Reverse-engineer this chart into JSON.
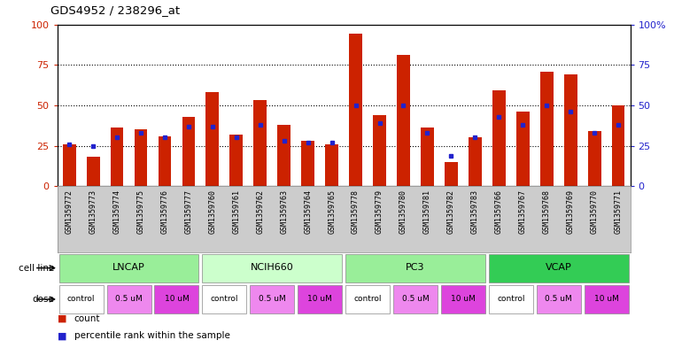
{
  "title": "GDS4952 / 238296_at",
  "samples": [
    "GSM1359772",
    "GSM1359773",
    "GSM1359774",
    "GSM1359775",
    "GSM1359776",
    "GSM1359777",
    "GSM1359760",
    "GSM1359761",
    "GSM1359762",
    "GSM1359763",
    "GSM1359764",
    "GSM1359765",
    "GSM1359778",
    "GSM1359779",
    "GSM1359780",
    "GSM1359781",
    "GSM1359782",
    "GSM1359783",
    "GSM1359766",
    "GSM1359767",
    "GSM1359768",
    "GSM1359769",
    "GSM1359770",
    "GSM1359771"
  ],
  "red_values": [
    26,
    18,
    36,
    35,
    31,
    43,
    58,
    32,
    53,
    38,
    28,
    26,
    94,
    44,
    81,
    36,
    15,
    30,
    59,
    46,
    71,
    69,
    34,
    50
  ],
  "blue_values": [
    26,
    25,
    30,
    33,
    30,
    37,
    37,
    30,
    38,
    28,
    27,
    27,
    50,
    39,
    50,
    33,
    19,
    30,
    43,
    38,
    50,
    46,
    33,
    38
  ],
  "bar_color": "#cc2200",
  "blue_color": "#2222cc",
  "cell_line_data": [
    {
      "label": "LNCAP",
      "start": 0,
      "end": 6,
      "color": "#99ee99"
    },
    {
      "label": "NCIH660",
      "start": 6,
      "end": 12,
      "color": "#ccffcc"
    },
    {
      "label": "PC3",
      "start": 12,
      "end": 18,
      "color": "#99ee99"
    },
    {
      "label": "VCAP",
      "start": 18,
      "end": 24,
      "color": "#33cc55"
    }
  ],
  "dose_data": [
    {
      "label": "control",
      "start": 0,
      "end": 2,
      "color": "#ffffff"
    },
    {
      "label": "0.5 uM",
      "start": 2,
      "end": 4,
      "color": "#ee88ee"
    },
    {
      "label": "10 uM",
      "start": 4,
      "end": 6,
      "color": "#dd44dd"
    },
    {
      "label": "control",
      "start": 6,
      "end": 8,
      "color": "#ffffff"
    },
    {
      "label": "0.5 uM",
      "start": 8,
      "end": 10,
      "color": "#ee88ee"
    },
    {
      "label": "10 uM",
      "start": 10,
      "end": 12,
      "color": "#dd44dd"
    },
    {
      "label": "control",
      "start": 12,
      "end": 14,
      "color": "#ffffff"
    },
    {
      "label": "0.5 uM",
      "start": 14,
      "end": 16,
      "color": "#ee88ee"
    },
    {
      "label": "10 uM",
      "start": 16,
      "end": 18,
      "color": "#dd44dd"
    },
    {
      "label": "control",
      "start": 18,
      "end": 20,
      "color": "#ffffff"
    },
    {
      "label": "0.5 uM",
      "start": 20,
      "end": 22,
      "color": "#ee88ee"
    },
    {
      "label": "10 uM",
      "start": 22,
      "end": 24,
      "color": "#dd44dd"
    }
  ],
  "ylim": [
    0,
    100
  ],
  "yticks": [
    0,
    25,
    50,
    75,
    100
  ],
  "grid_values": [
    25,
    50,
    75
  ],
  "n_bars": 24
}
